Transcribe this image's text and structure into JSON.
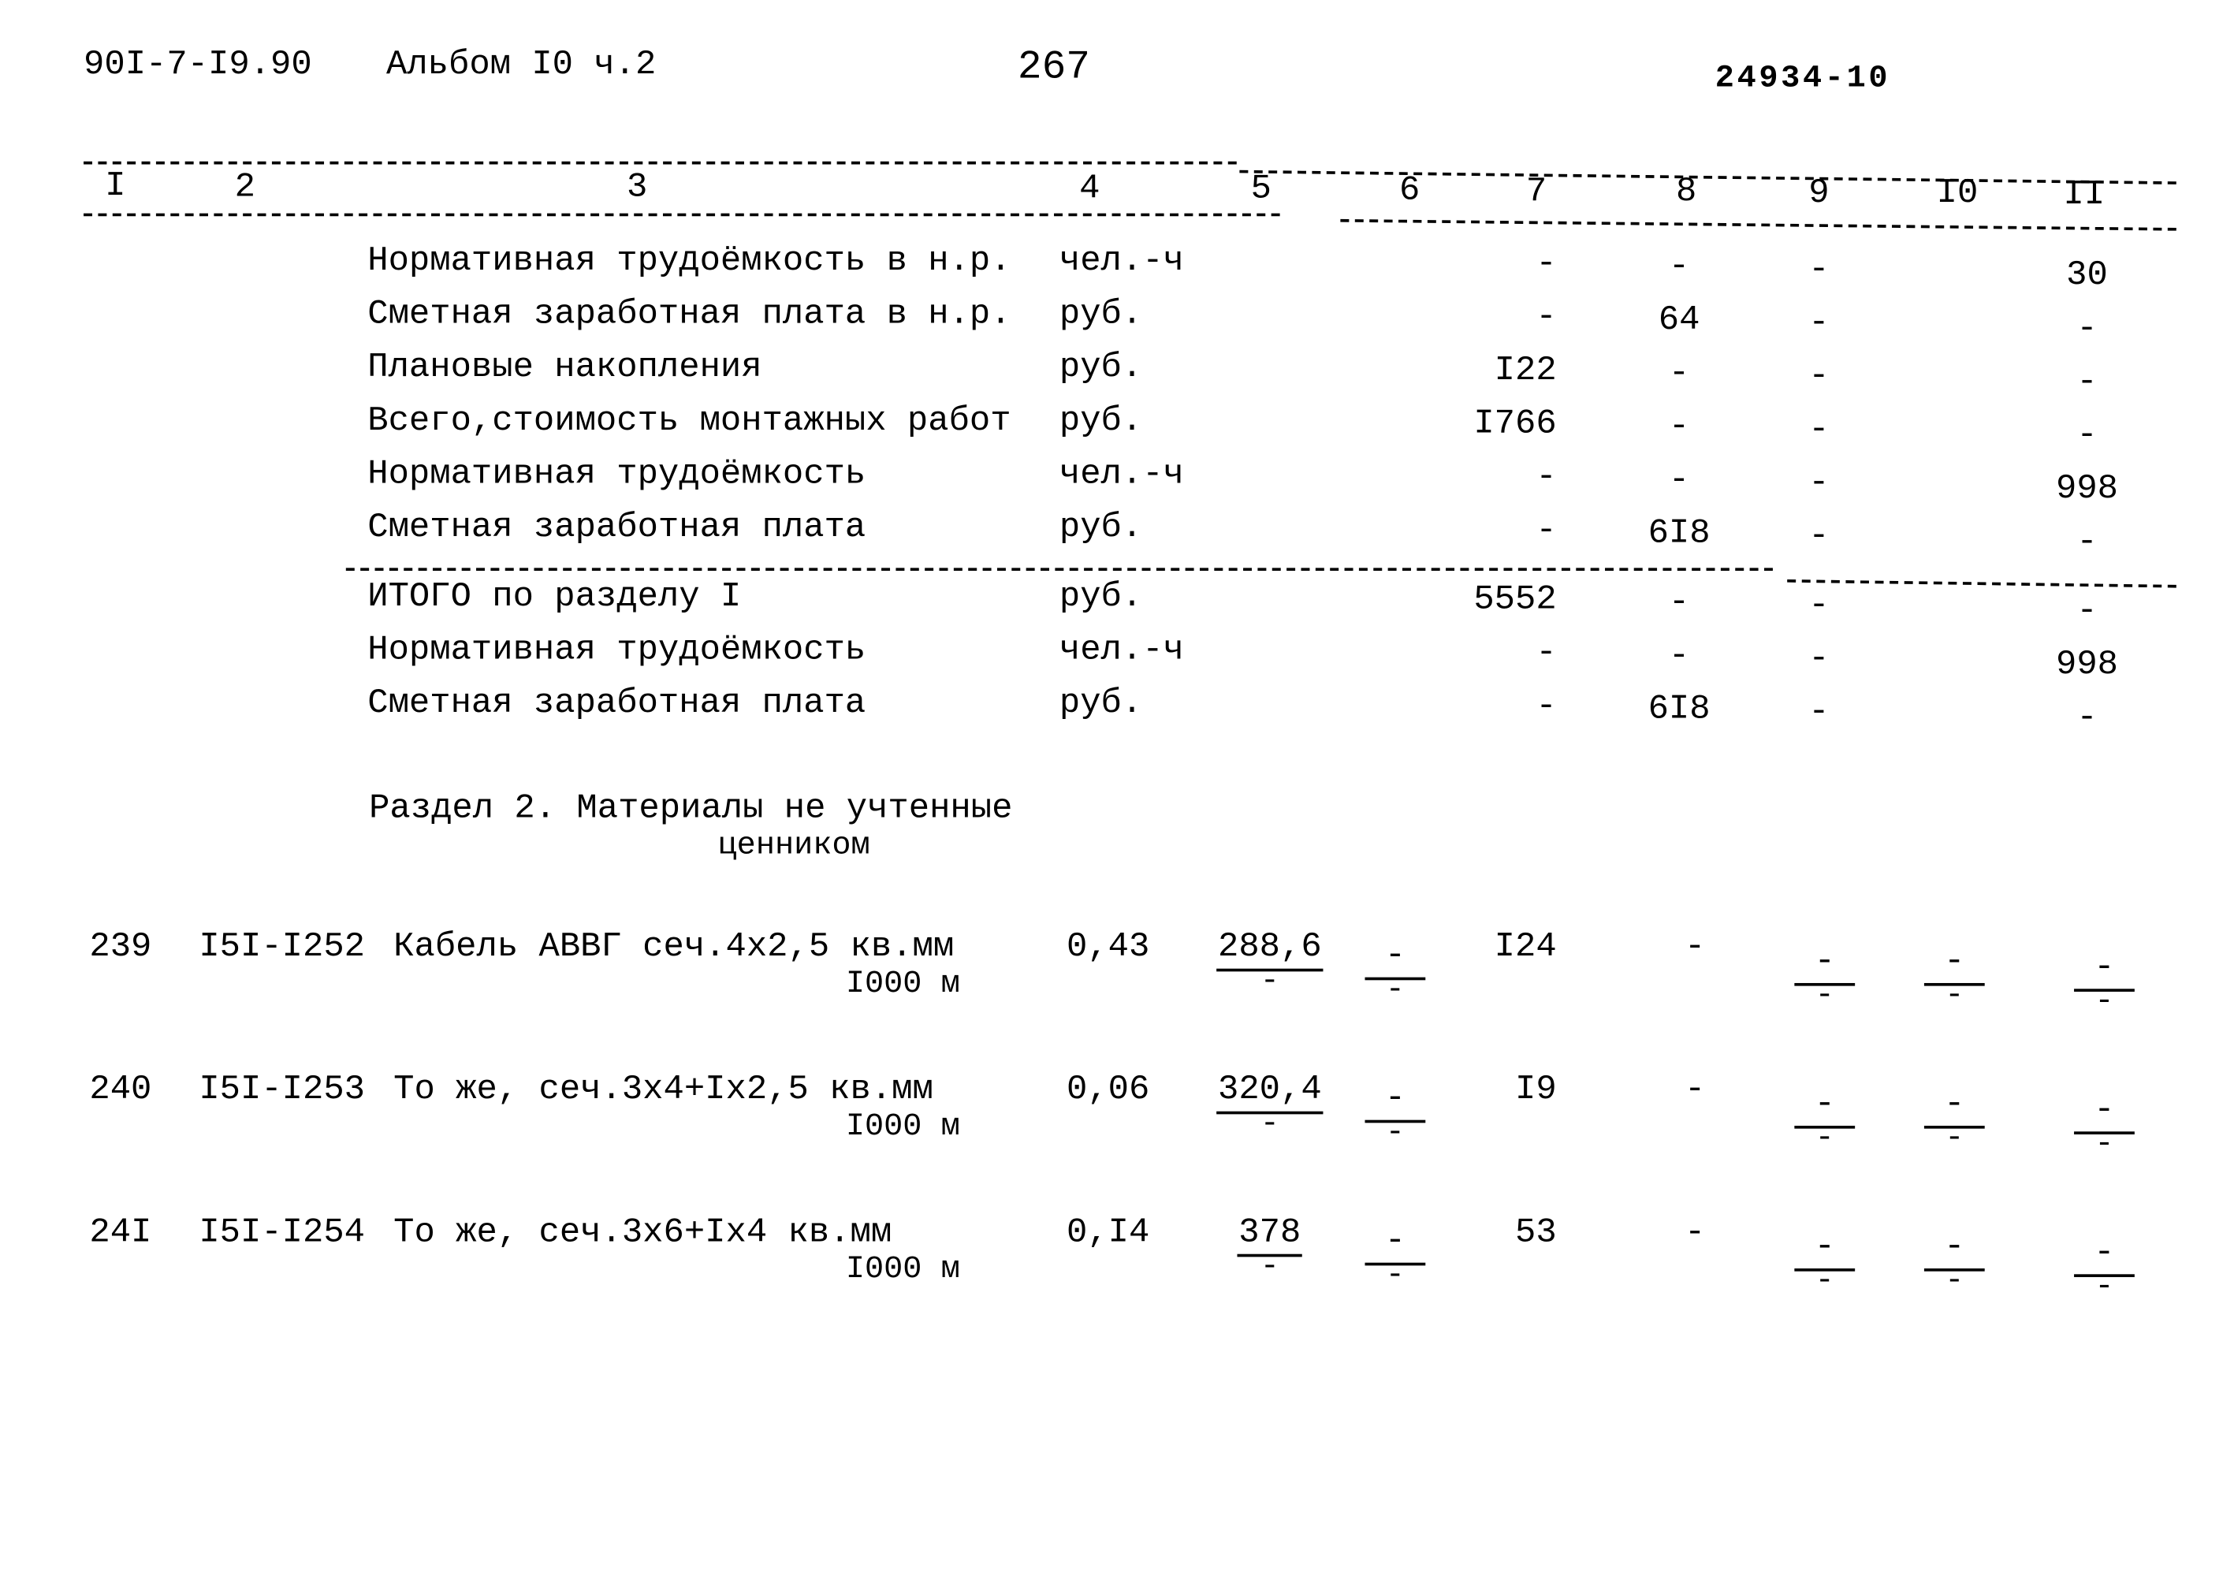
{
  "header": {
    "doc_code": "90I-7-I9.90",
    "album": "Альбом I0 ч.2",
    "page_number": "267",
    "stamp": "24934-10"
  },
  "columns": [
    "I",
    "2",
    "3",
    "4",
    "5",
    "6",
    "7",
    "8",
    "9",
    "I0",
    "II"
  ],
  "summary_rows": [
    {
      "name": "Нормативная трудоёмкость в н.р.",
      "unit": "чел.-ч",
      "c7": "-",
      "c8": "-",
      "c9": "-",
      "c11": "30"
    },
    {
      "name": "Сметная заработная плата в н.р.",
      "unit": "руб.",
      "c7": "-",
      "c8": "64",
      "c9": "-",
      "c11": "-"
    },
    {
      "name": "Плановые накопления",
      "unit": "руб.",
      "c7": "I22",
      "c8": "-",
      "c9": "-",
      "c11": "-"
    },
    {
      "name": "Всего,стоимость монтажных работ",
      "unit": "руб.",
      "c7": "I766",
      "c8": "-",
      "c9": "-",
      "c11": "-"
    },
    {
      "name": "Нормативная трудоёмкость",
      "unit": "чел.-ч",
      "c7": "-",
      "c8": "-",
      "c9": "-",
      "c11": "998"
    },
    {
      "name": "Сметная заработная плата",
      "unit": "руб.",
      "c7": "-",
      "c8": "6I8",
      "c9": "-",
      "c11": "-"
    }
  ],
  "total_rows": [
    {
      "name": "ИТОГО по разделу I",
      "unit": "руб.",
      "c7": "5552",
      "c8": "-",
      "c9": "-",
      "c11": "-"
    },
    {
      "name": "Нормативная трудоёмкость",
      "unit": "чел.-ч",
      "c7": "-",
      "c8": "-",
      "c9": "-",
      "c11": "998"
    },
    {
      "name": "Сметная заработная плата",
      "unit": "руб.",
      "c7": "-",
      "c8": "6I8",
      "c9": "-",
      "c11": "-"
    }
  ],
  "section2": {
    "title_line1": "Раздел 2. Материалы не учтенные",
    "title_line2": "ценником"
  },
  "items": [
    {
      "num": "239",
      "code": "I5I-I252",
      "name": "Кабель АВВГ сеч.4х2,5 кв.мм",
      "unit": "I000 м",
      "qty": "0,43",
      "price": "288,6",
      "price_sub": "-",
      "c6": "-",
      "c6_sub": "-",
      "c7": "I24",
      "c8": "-",
      "c9": "-",
      "c9_sub": "-",
      "c10": "-",
      "c10_sub": "-",
      "c11": "-",
      "c11_sub": "-"
    },
    {
      "num": "240",
      "code": "I5I-I253",
      "name": "То же, сеч.3х4+Iх2,5 кв.мм",
      "unit": "I000 м",
      "qty": "0,06",
      "price": "320,4",
      "price_sub": "-",
      "c6": "-",
      "c6_sub": "-",
      "c7": "I9",
      "c8": "-",
      "c9": "-",
      "c9_sub": "-",
      "c10": "-",
      "c10_sub": "-",
      "c11": "-",
      "c11_sub": "-"
    },
    {
      "num": "24I",
      "code": "I5I-I254",
      "name": "То же, сеч.3х6+Iх4 кв.мм",
      "unit": "I000 м",
      "qty": "0,I4",
      "price": "378",
      "price_sub": "-",
      "c6": "-",
      "c6_sub": "-",
      "c7": "53",
      "c8": "-",
      "c9": "-",
      "c9_sub": "-",
      "c10": "-",
      "c10_sub": "-",
      "c11": "-",
      "c11_sub": "-"
    }
  ]
}
